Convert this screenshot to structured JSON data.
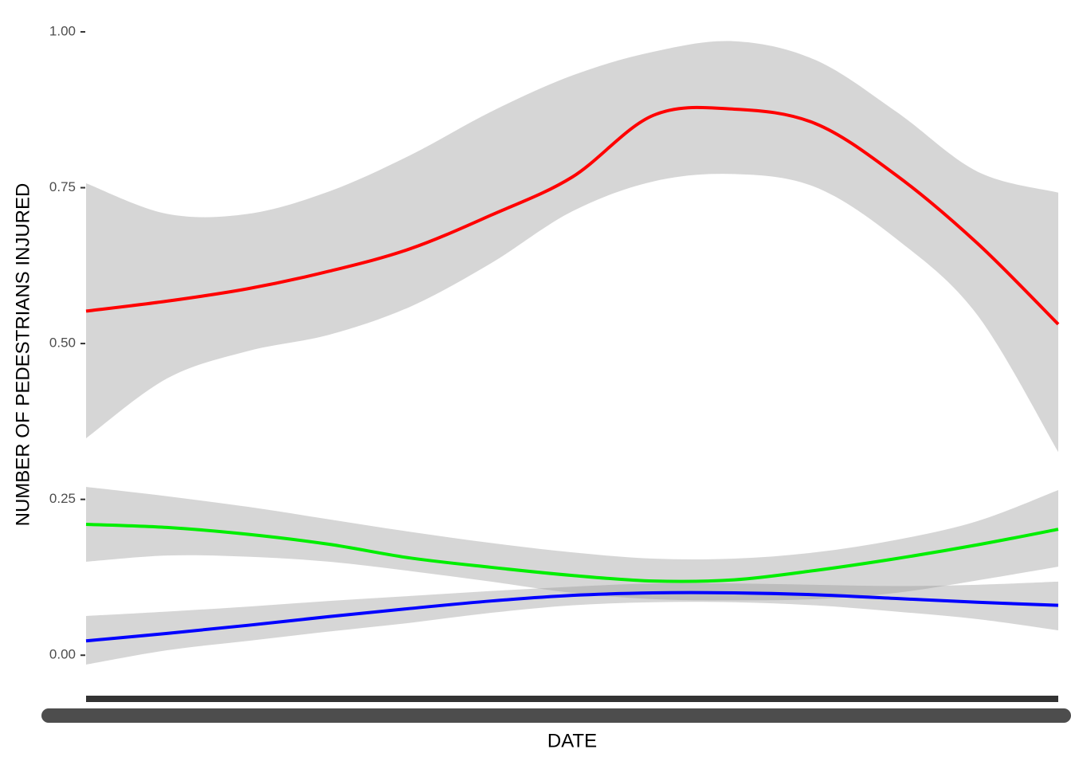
{
  "chart_data": {
    "type": "smooth",
    "x_label": "DATE",
    "y_label": "NUMBER OF PEDESTRIANS INJURED",
    "categories": [
      null,
      null,
      null,
      null,
      null,
      null,
      null,
      null,
      null,
      null,
      null,
      null,
      null
    ],
    "ylim": [
      -0.07,
      1.03
    ],
    "yticks": [
      {
        "value": 0,
        "label": "0.00"
      },
      {
        "value": 0.25,
        "label": "0.25"
      },
      {
        "value": 0.5,
        "label": "0.50"
      },
      {
        "value": 0.75,
        "label": "0.75"
      },
      {
        "value": 1,
        "label": "1.00"
      }
    ],
    "band_color": "#999999",
    "band_alpha": 0.4,
    "series": [
      {
        "color": "#ff0000",
        "values": [
          0.552,
          0.568,
          0.588,
          0.616,
          0.652,
          0.706,
          0.767,
          0.866,
          0.876,
          0.853,
          0.77,
          0.661,
          0.531
        ],
        "upper": [
          0.757,
          0.708,
          0.708,
          0.744,
          0.802,
          0.872,
          0.93,
          0.968,
          0.985,
          0.955,
          0.872,
          0.776,
          0.742
        ],
        "lower": [
          0.348,
          0.444,
          0.488,
          0.514,
          0.559,
          0.629,
          0.712,
          0.76,
          0.772,
          0.751,
          0.668,
          0.546,
          0.326
        ]
      },
      {
        "color": "#00ee00",
        "values": [
          0.21,
          0.205,
          0.194,
          0.178,
          0.156,
          0.141,
          0.128,
          0.119,
          0.121,
          0.136,
          0.155,
          0.177,
          0.202
        ],
        "upper": [
          0.27,
          0.255,
          0.238,
          0.218,
          0.198,
          0.18,
          0.165,
          0.155,
          0.155,
          0.165,
          0.185,
          0.215,
          0.265
        ],
        "lower": [
          0.15,
          0.16,
          0.158,
          0.15,
          0.135,
          0.118,
          0.1,
          0.09,
          0.088,
          0.09,
          0.1,
          0.12,
          0.142
        ]
      },
      {
        "color": "#0000ff",
        "values": [
          0.023,
          0.035,
          0.048,
          0.062,
          0.075,
          0.087,
          0.096,
          0.1,
          0.1,
          0.097,
          0.091,
          0.085,
          0.08
        ],
        "upper": [
          0.063,
          0.07,
          0.078,
          0.087,
          0.095,
          0.103,
          0.11,
          0.115,
          0.115,
          0.113,
          0.111,
          0.113,
          0.118
        ],
        "lower": [
          -0.015,
          0.008,
          0.023,
          0.038,
          0.052,
          0.068,
          0.08,
          0.085,
          0.085,
          0.08,
          0.07,
          0.058,
          0.04
        ]
      }
    ]
  }
}
